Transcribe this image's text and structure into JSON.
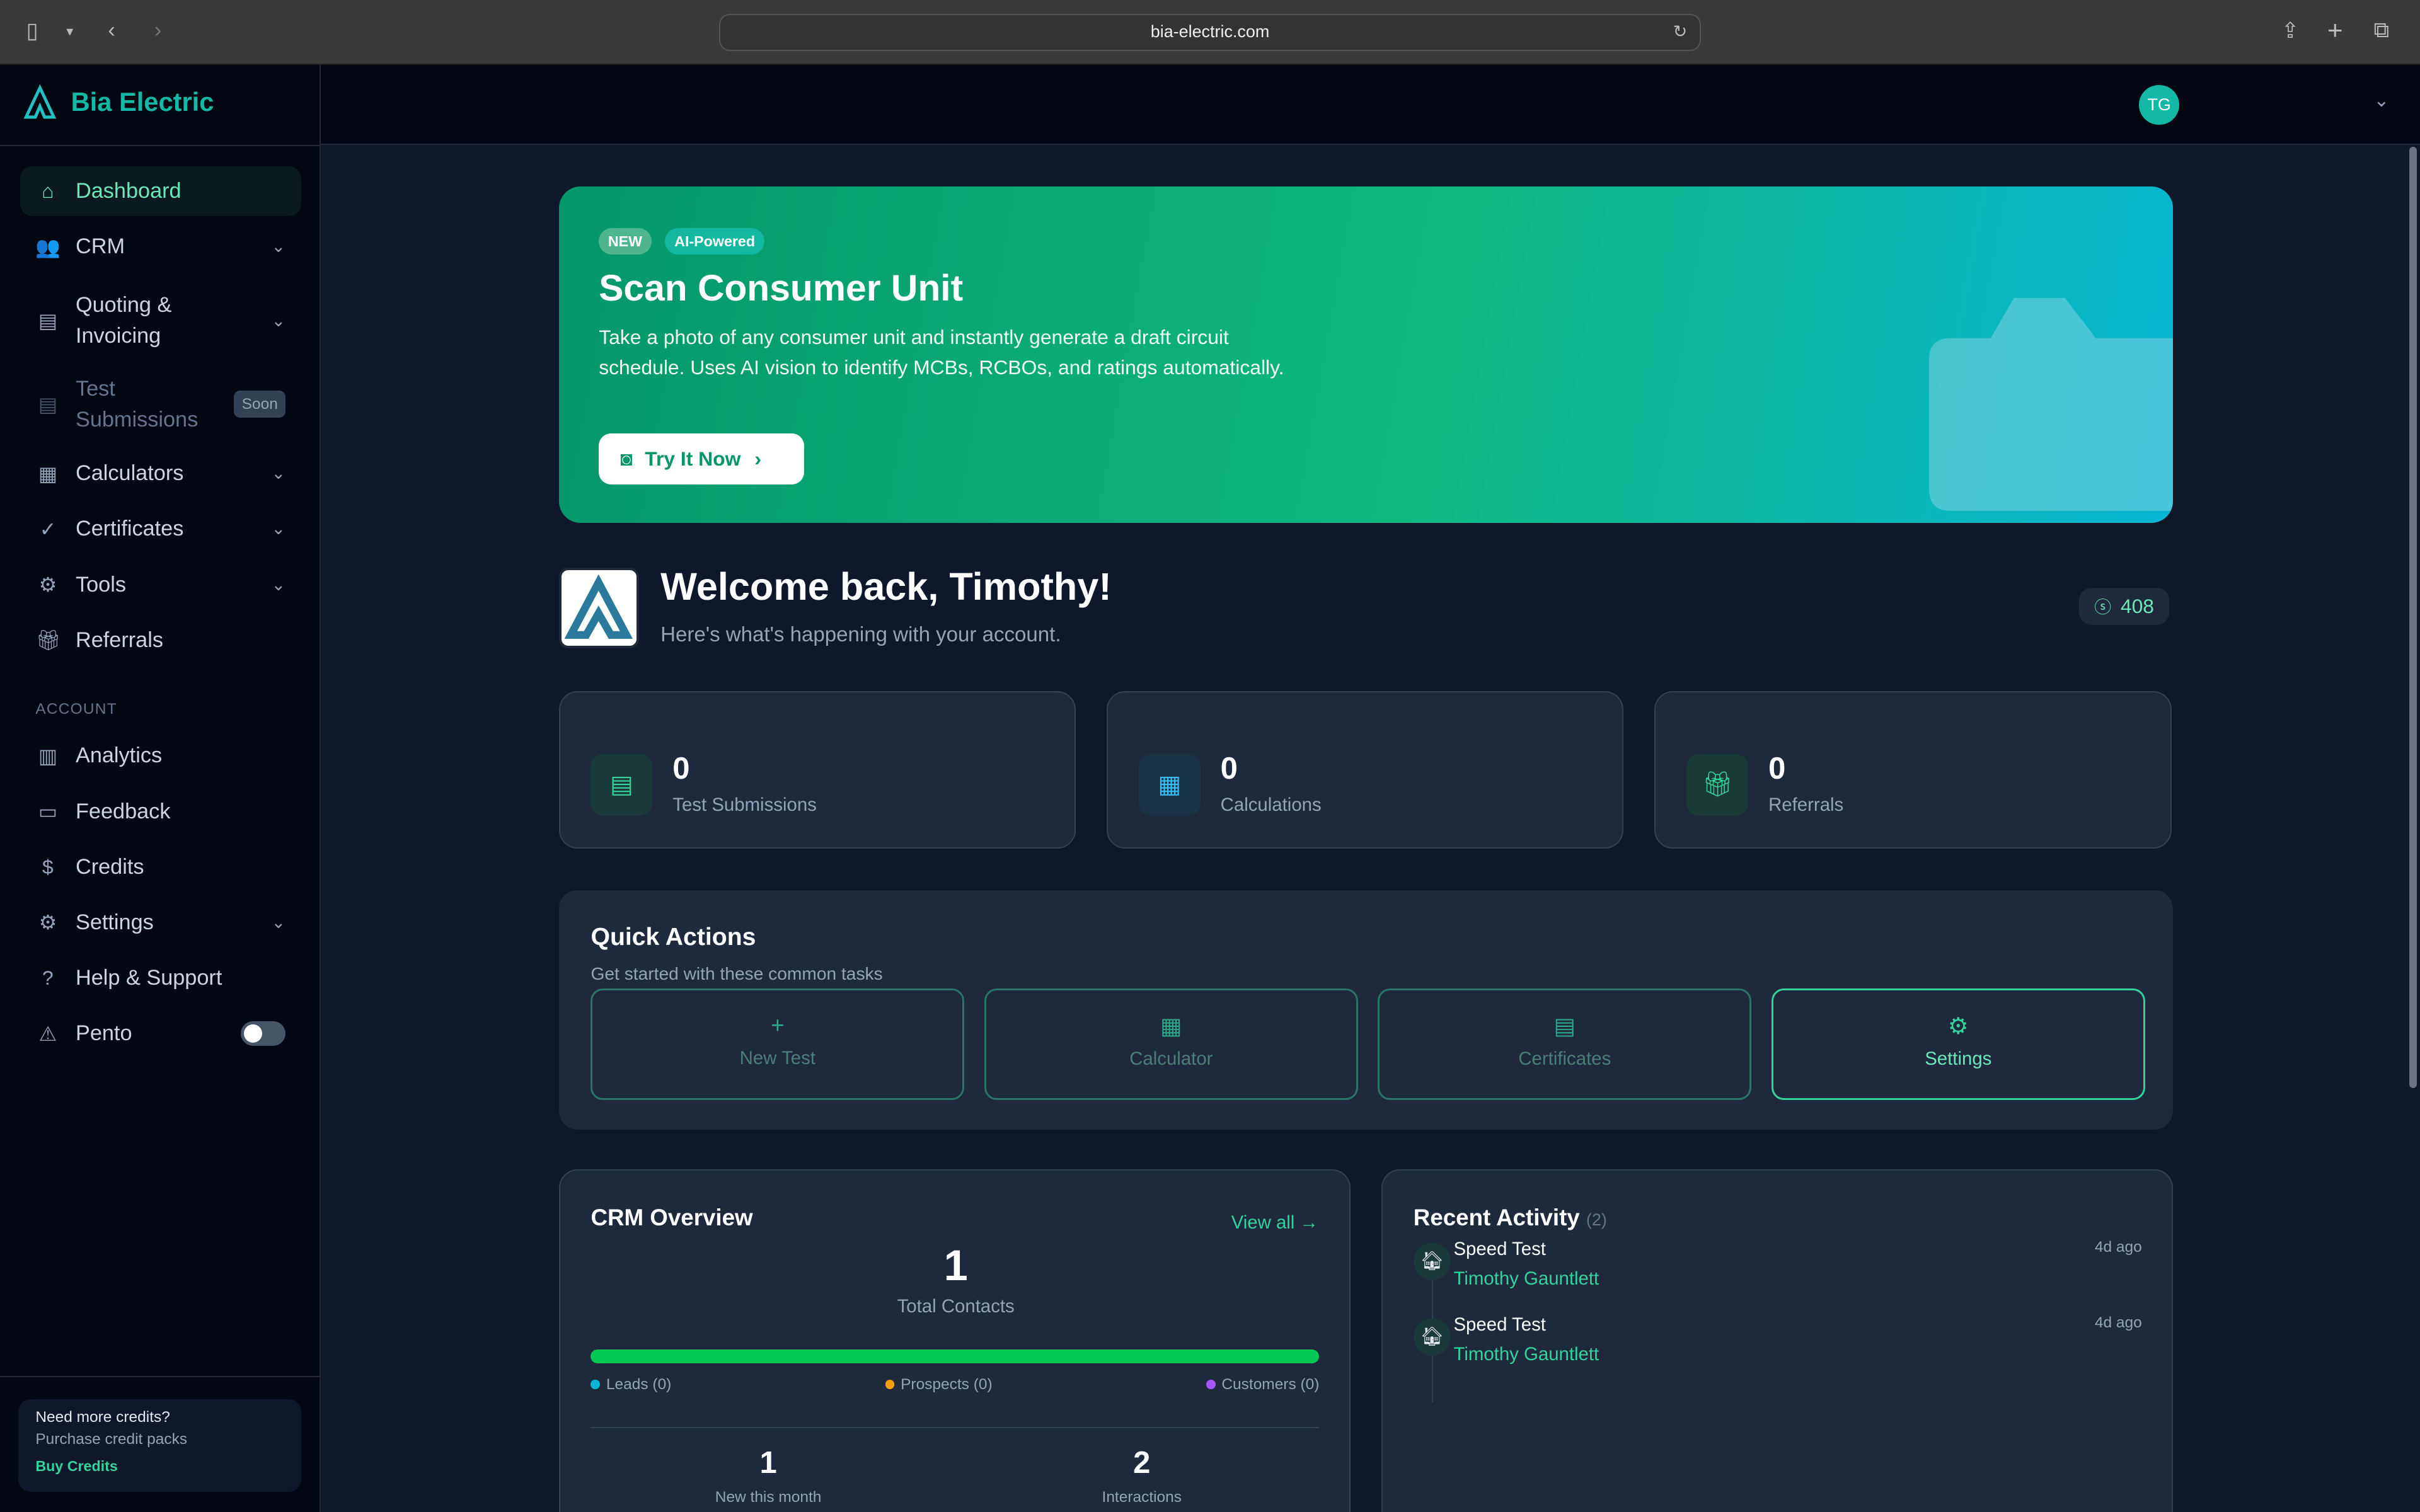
{
  "browser": {
    "url": "bia-electric.com"
  },
  "brand": {
    "name": "Bia Electric",
    "accent": "#14b8a6"
  },
  "user": {
    "initials": "TG"
  },
  "sidebar": {
    "items": [
      {
        "label": "Dashboard",
        "icon": "home-icon"
      },
      {
        "label": "CRM",
        "icon": "users-icon"
      },
      {
        "label": "Quoting & Invoicing",
        "icon": "document-icon"
      },
      {
        "label": "Test Submissions",
        "icon": "document-icon",
        "badge": "Soon"
      },
      {
        "label": "Calculators",
        "icon": "calculator-icon"
      },
      {
        "label": "Certificates",
        "icon": "check-circle-icon"
      },
      {
        "label": "Tools",
        "icon": "gear-icon"
      },
      {
        "label": "Referrals",
        "icon": "gift-icon"
      }
    ],
    "section": "ACCOUNT",
    "account_items": [
      {
        "label": "Analytics",
        "icon": "bar-chart-icon"
      },
      {
        "label": "Feedback",
        "icon": "message-icon"
      },
      {
        "label": "Credits",
        "icon": "dollar-icon"
      },
      {
        "label": "Settings",
        "icon": "gear-icon"
      },
      {
        "label": "Help & Support",
        "icon": "help-icon"
      },
      {
        "label": "Pento",
        "icon": "warning-icon"
      }
    ],
    "promo": {
      "title": "Need more credits?",
      "subtitle": "Purchase credit packs",
      "link": "Buy Credits"
    }
  },
  "banner": {
    "badge_new": "NEW",
    "badge_ai": "AI-Powered",
    "title": "Scan Consumer Unit",
    "text": "Take a photo of any consumer unit and instantly generate a draft circuit schedule. Uses AI vision to identify MCBs, RCBOs, and ratings automatically.",
    "button": "Try It Now"
  },
  "welcome": {
    "title": "Welcome back, Timothy!",
    "subtitle": "Here's what's happening with your account.",
    "credits": "408"
  },
  "stats": [
    {
      "value": "0",
      "label": "Test Submissions"
    },
    {
      "value": "0",
      "label": "Calculations"
    },
    {
      "value": "0",
      "label": "Referrals"
    }
  ],
  "quick_actions": {
    "title": "Quick Actions",
    "subtitle": "Get started with these common tasks",
    "items": [
      {
        "label": "New Test"
      },
      {
        "label": "Calculator"
      },
      {
        "label": "Certificates"
      },
      {
        "label": "Settings"
      }
    ]
  },
  "crm": {
    "title": "CRM Overview",
    "view_all": "View all →",
    "total": "1",
    "total_label": "Total Contacts",
    "legend": [
      {
        "label": "Leads (0)",
        "color": "#06b6d4"
      },
      {
        "label": "Prospects (0)",
        "color": "#f59e0b"
      },
      {
        "label": "Customers (0)",
        "color": "#a855f7"
      }
    ],
    "bar_color": "#00c853",
    "new_month": "1",
    "new_month_label": "New this month",
    "interactions": "2",
    "interactions_label": "Interactions"
  },
  "activity": {
    "title": "Recent Activity",
    "count": "(2)",
    "items": [
      {
        "title": "Speed Test",
        "person": "Timothy Gauntlett",
        "time": "4d ago"
      },
      {
        "title": "Speed Test",
        "person": "Timothy Gauntlett",
        "time": "4d ago"
      }
    ]
  }
}
